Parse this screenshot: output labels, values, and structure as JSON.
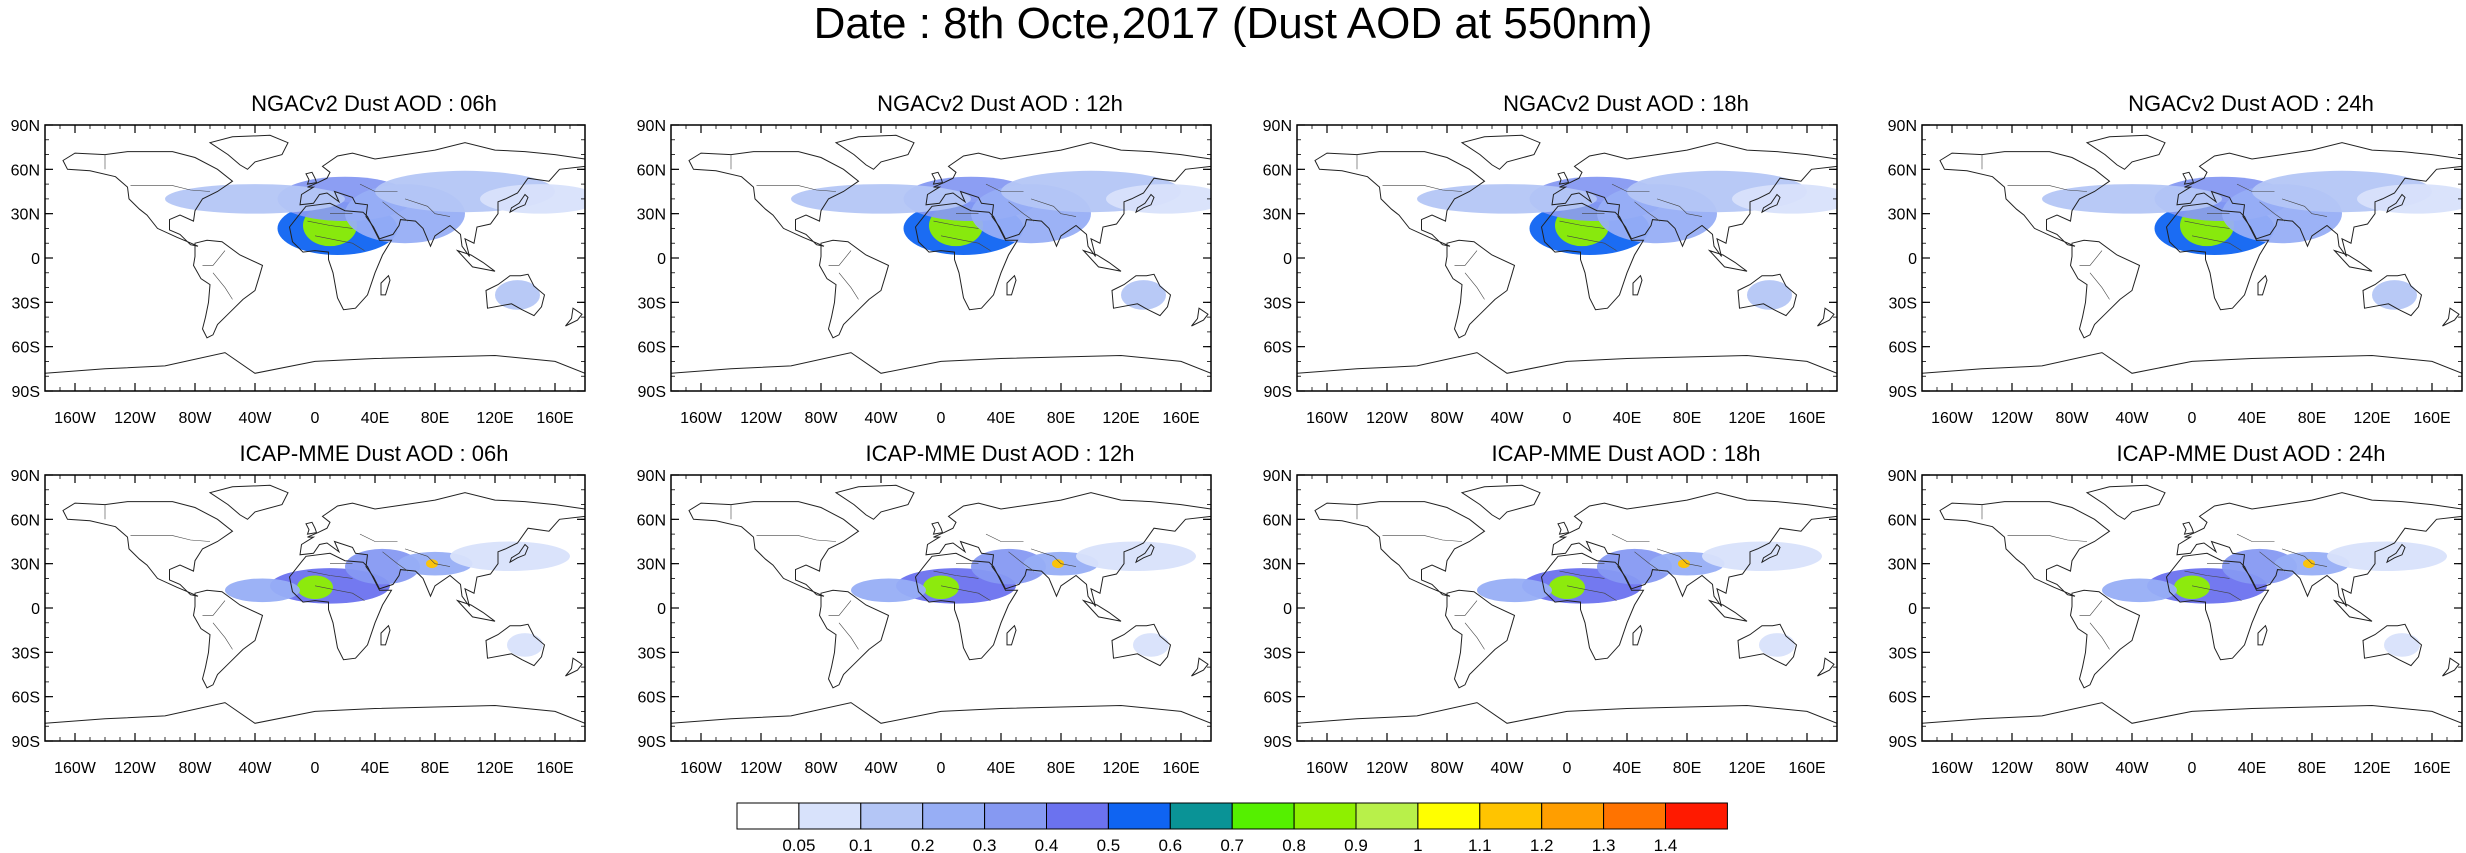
{
  "title": "Date : 8th Octe,2017 (Dust AOD at 550nm)",
  "panels": [
    {
      "title": "NGACv2 Dust AOD : 06h",
      "model": "ngac"
    },
    {
      "title": "NGACv2 Dust AOD : 12h",
      "model": "ngac"
    },
    {
      "title": "NGACv2 Dust AOD : 18h",
      "model": "ngac"
    },
    {
      "title": "NGACv2 Dust AOD : 24h",
      "model": "ngac"
    },
    {
      "title": "ICAP-MME Dust AOD : 06h",
      "model": "icap"
    },
    {
      "title": "ICAP-MME Dust AOD : 12h",
      "model": "icap"
    },
    {
      "title": "ICAP-MME Dust AOD : 18h",
      "model": "icap"
    },
    {
      "title": "ICAP-MME Dust AOD : 24h",
      "model": "icap"
    }
  ],
  "lat_ticks": [
    {
      "lat": 90,
      "label": "90N"
    },
    {
      "lat": 60,
      "label": "60N"
    },
    {
      "lat": 30,
      "label": "30N"
    },
    {
      "lat": 0,
      "label": "0"
    },
    {
      "lat": -30,
      "label": "30S"
    },
    {
      "lat": -60,
      "label": "60S"
    },
    {
      "lat": -90,
      "label": "90S"
    }
  ],
  "lon_ticks": [
    {
      "lon": -160,
      "label": "160W"
    },
    {
      "lon": -120,
      "label": "120W"
    },
    {
      "lon": -80,
      "label": "80W"
    },
    {
      "lon": -40,
      "label": "40W"
    },
    {
      "lon": 0,
      "label": "0"
    },
    {
      "lon": 40,
      "label": "40E"
    },
    {
      "lon": 80,
      "label": "80E"
    },
    {
      "lon": 120,
      "label": "120E"
    },
    {
      "lon": 160,
      "label": "160E"
    }
  ],
  "colorbar": {
    "colors": [
      "#ffffff",
      "#d8e2fb",
      "#b4c6f6",
      "#97aef5",
      "#8699f2",
      "#6b72ef",
      "#0f64f2",
      "#0a9396",
      "#55f000",
      "#8ef000",
      "#b8f04a",
      "#ffff00",
      "#ffc400",
      "#ff9e00",
      "#ff7300",
      "#ff1a00"
    ],
    "labels": [
      "0.05",
      "0.1",
      "0.2",
      "0.3",
      "0.4",
      "0.5",
      "0.6",
      "0.7",
      "0.8",
      "0.9",
      "1",
      "1.1",
      "1.2",
      "1.3",
      "1.4"
    ]
  },
  "aod_fields": {
    "ngac": [
      {
        "lon": 15,
        "lat": 20,
        "rlon": 40,
        "rlat": 18,
        "aod": 0.5
      },
      {
        "lon": 10,
        "lat": 22,
        "rlon": 18,
        "rlat": 14,
        "aod": 0.8
      },
      {
        "lon": 20,
        "lat": 40,
        "rlon": 45,
        "rlat": 15,
        "aod": 0.3
      },
      {
        "lon": 60,
        "lat": 30,
        "rlon": 40,
        "rlat": 20,
        "aod": 0.2
      },
      {
        "lon": -40,
        "lat": 40,
        "rlon": 60,
        "rlat": 10,
        "aod": 0.1
      },
      {
        "lon": 100,
        "lat": 45,
        "rlon": 60,
        "rlat": 14,
        "aod": 0.1
      },
      {
        "lon": 150,
        "lat": 40,
        "rlon": 40,
        "rlat": 10,
        "aod": 0.05
      },
      {
        "lon": 135,
        "lat": -25,
        "rlon": 15,
        "rlat": 10,
        "aod": 0.1
      }
    ],
    "icap": [
      {
        "lon": 10,
        "lat": 15,
        "rlon": 40,
        "rlat": 12,
        "aod": 0.4
      },
      {
        "lon": 0,
        "lat": 14,
        "rlon": 12,
        "rlat": 8,
        "aod": 0.8
      },
      {
        "lon": 45,
        "lat": 28,
        "rlon": 25,
        "rlat": 12,
        "aod": 0.3
      },
      {
        "lon": 80,
        "lat": 30,
        "rlon": 25,
        "rlat": 8,
        "aod": 0.2
      },
      {
        "lon": 78,
        "lat": 30,
        "rlon": 4,
        "rlat": 3,
        "aod": 1.1
      },
      {
        "lon": -35,
        "lat": 12,
        "rlon": 25,
        "rlat": 8,
        "aod": 0.2
      },
      {
        "lon": 130,
        "lat": 35,
        "rlon": 40,
        "rlat": 10,
        "aod": 0.05
      },
      {
        "lon": 140,
        "lat": -25,
        "rlon": 12,
        "rlat": 8,
        "aod": 0.05
      }
    ]
  }
}
